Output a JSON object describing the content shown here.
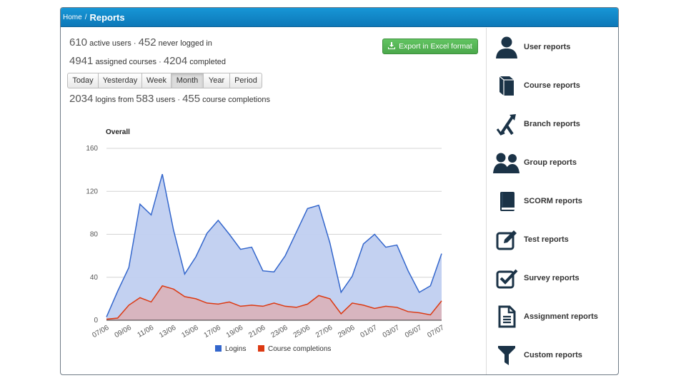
{
  "breadcrumb": {
    "home": "Home",
    "separator": "/",
    "title": "Reports"
  },
  "stats": {
    "active_users": "610",
    "active_users_label": "active users ·",
    "never_logged": "452",
    "never_logged_label": "never logged in",
    "assigned_courses": "4941",
    "assigned_courses_label": "assigned courses ·",
    "completed": "4204",
    "completed_label": "completed",
    "logins": "2034",
    "logins_label": "logins from",
    "users": "583",
    "users_label": "users ·",
    "completions": "455",
    "completions_label": "course completions"
  },
  "export_button": {
    "label": "Export in Excel format",
    "icon": "download-icon"
  },
  "periods": [
    "Today",
    "Yesterday",
    "Week",
    "Month",
    "Year",
    "Period"
  ],
  "active_period": "Month",
  "chart_data": {
    "type": "area",
    "title": "Overall",
    "x": [
      "07/06",
      "08/06",
      "09/06",
      "10/06",
      "11/06",
      "12/06",
      "13/06",
      "14/06",
      "15/06",
      "16/06",
      "17/06",
      "18/06",
      "19/06",
      "20/06",
      "21/06",
      "22/06",
      "23/06",
      "24/06",
      "25/06",
      "26/06",
      "27/06",
      "28/06",
      "29/06",
      "30/06",
      "01/07",
      "02/07",
      "03/07",
      "04/07",
      "05/07",
      "06/07",
      "07/07"
    ],
    "x_tick_labels": [
      "07/06",
      "09/06",
      "11/06",
      "13/06",
      "15/06",
      "17/06",
      "19/06",
      "21/06",
      "23/06",
      "25/06",
      "27/06",
      "29/06",
      "01/07",
      "03/07",
      "05/07",
      "07/07"
    ],
    "series": [
      {
        "name": "Logins",
        "color": "#3366cc",
        "fill": "#c0cff0",
        "values": [
          3,
          27,
          49,
          108,
          98,
          136,
          84,
          43,
          59,
          81,
          93,
          80,
          66,
          68,
          46,
          45,
          60,
          82,
          104,
          107,
          72,
          26,
          41,
          71,
          80,
          68,
          70,
          46,
          26,
          32,
          62
        ]
      },
      {
        "name": "Course completions",
        "color": "#dc3912",
        "fill": "#dcb0b6",
        "values": [
          1,
          2,
          14,
          21,
          17,
          32,
          29,
          22,
          20,
          16,
          15,
          17,
          13,
          14,
          13,
          16,
          13,
          12,
          15,
          23,
          20,
          6,
          16,
          14,
          11,
          13,
          12,
          8,
          7,
          5,
          18
        ]
      }
    ],
    "ylim": [
      0,
      160
    ],
    "yticks": [
      0,
      40,
      80,
      120,
      160
    ],
    "grid": true,
    "legend": "bottom"
  },
  "sidebar": {
    "items": [
      {
        "label": "User reports",
        "icon": "user-icon"
      },
      {
        "label": "Course reports",
        "icon": "book-icon"
      },
      {
        "label": "Branch reports",
        "icon": "branch-icon"
      },
      {
        "label": "Group reports",
        "icon": "group-icon"
      },
      {
        "label": "SCORM reports",
        "icon": "scorm-book-icon"
      },
      {
        "label": "Test reports",
        "icon": "edit-icon"
      },
      {
        "label": "Survey reports",
        "icon": "checkbox-icon"
      },
      {
        "label": "Assignment reports",
        "icon": "document-icon"
      },
      {
        "label": "Custom reports",
        "icon": "filter-icon"
      }
    ]
  },
  "colors": {
    "header": "#1287c8",
    "export": "#5bb75b",
    "icon": "#1b3347"
  }
}
